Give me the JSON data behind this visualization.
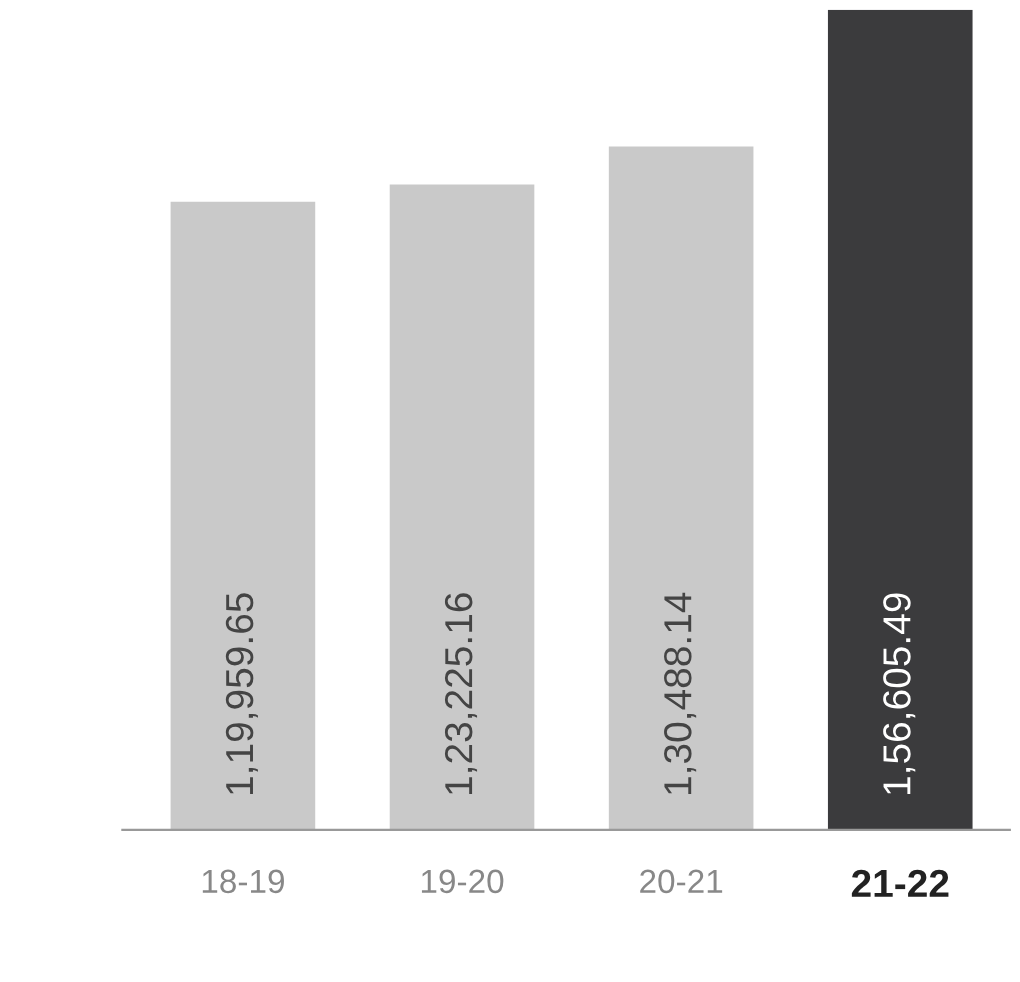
{
  "chart_data": {
    "type": "bar",
    "categories": [
      "18-19",
      "19-20",
      "20-21",
      "21-22"
    ],
    "values": [
      119959.65,
      123225.16,
      130488.14,
      156605.49
    ],
    "colors": [
      "#c9c9c9",
      "#c9c9c9",
      "#c9c9c9",
      "#3b3b3d"
    ],
    "value_labels": [
      "1,19,959.65",
      "1,23,225.16",
      "1,30,488.14",
      "1,56,605.49"
    ],
    "grid": false,
    "legend": false
  }
}
